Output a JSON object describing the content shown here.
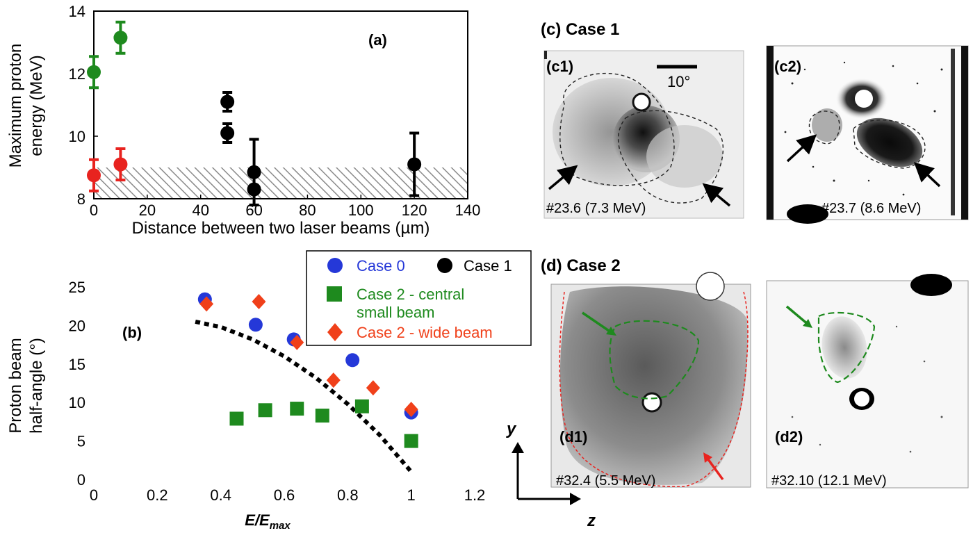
{
  "panel_a": {
    "label": "(a)",
    "chart_data": {
      "type": "scatter",
      "xlabel": "Distance between two laser beams (µm)",
      "ylabel_line1": "Maximum proton",
      "ylabel_line2": "energy (MeV)",
      "xlim": [
        0,
        140
      ],
      "ylim": [
        8,
        14
      ],
      "xticks": [
        0,
        20,
        40,
        60,
        80,
        100,
        120,
        140
      ],
      "yticks": [
        8,
        10,
        12,
        14
      ],
      "hatched_region": {
        "y_from": 8,
        "y_to": 9
      },
      "series": [
        {
          "color": "#1e8a1e",
          "points": [
            {
              "x": 0,
              "y": 12.05,
              "err": 0.5
            },
            {
              "x": 10,
              "y": 13.15,
              "err": 0.5
            }
          ]
        },
        {
          "color": "#e8231f",
          "points": [
            {
              "x": 0,
              "y": 8.75,
              "err": 0.5
            },
            {
              "x": 10,
              "y": 9.1,
              "err": 0.5
            }
          ]
        },
        {
          "color": "#000000",
          "points": [
            {
              "x": 50,
              "y": 11.1,
              "err": 0.3
            },
            {
              "x": 50,
              "y": 10.1,
              "err": 0.3
            },
            {
              "x": 60,
              "y": 8.85,
              "err": 1.05
            },
            {
              "x": 60,
              "y": 8.3,
              "err": 0.0
            },
            {
              "x": 120,
              "y": 9.1,
              "err": 1.0
            }
          ]
        }
      ]
    }
  },
  "panel_b": {
    "label": "(b)",
    "chart_data": {
      "type": "scatter",
      "xlabel": "E/E",
      "xlabel_sub": "max",
      "ylabel_line1": "Proton beam",
      "ylabel_line2": "half-angle (°)",
      "xlim": [
        0,
        1.2
      ],
      "ylim": [
        0,
        25
      ],
      "xticks": [
        "0",
        "0.2",
        "0.4",
        "0.6",
        "0.8",
        "1",
        "1.2"
      ],
      "xtick_values": [
        0,
        0.2,
        0.4,
        0.6,
        0.8,
        1.0,
        1.2
      ],
      "yticks": [
        0,
        5,
        10,
        15,
        20,
        25
      ],
      "series": [
        {
          "name": "Case 0",
          "color": "#2538d8",
          "marker": "circle",
          "points": [
            [
              0.35,
              23.4
            ],
            [
              0.51,
              20.1
            ],
            [
              0.63,
              18.2
            ],
            [
              0.815,
              15.5
            ],
            [
              1.0,
              8.7
            ]
          ]
        },
        {
          "name": "Case 1",
          "color": "#000000",
          "marker": "circle",
          "points": []
        },
        {
          "name": "Case 2 - central small beam",
          "name_line1": "Case 2 - central",
          "name_line2": "small beam",
          "color": "#1e8a1e",
          "marker": "square",
          "points": [
            [
              0.45,
              7.9
            ],
            [
              0.54,
              9.0
            ],
            [
              0.64,
              9.2
            ],
            [
              0.72,
              8.3
            ],
            [
              0.845,
              9.5
            ],
            [
              1.0,
              5.0
            ]
          ]
        },
        {
          "name": "Case 2 - wide beam",
          "color": "#f0401a",
          "marker": "diamond",
          "points": [
            [
              0.355,
              22.8
            ],
            [
              0.52,
              23.1
            ],
            [
              0.64,
              17.8
            ],
            [
              0.755,
              12.9
            ],
            [
              0.88,
              11.9
            ],
            [
              1.0,
              9.1
            ]
          ]
        }
      ],
      "curve": [
        [
          0.32,
          20.5
        ],
        [
          0.4,
          19.8
        ],
        [
          0.5,
          18.2
        ],
        [
          0.6,
          16.0
        ],
        [
          0.7,
          13.2
        ],
        [
          0.8,
          9.8
        ],
        [
          0.9,
          5.8
        ],
        [
          1.0,
          1.0
        ]
      ]
    }
  },
  "panel_c": {
    "title": "(c) Case 1",
    "c1": {
      "label": "(c1)",
      "scale": "10°",
      "caption": "#23.6 (7.3 MeV)"
    },
    "c2": {
      "label": "(c2)",
      "caption": "#23.7 (8.6 MeV)"
    }
  },
  "panel_d": {
    "title": "(d) Case 2",
    "d1": {
      "label": "(d1)",
      "caption": "#32.4 (5.5 MeV)"
    },
    "d2": {
      "label": "(d2)",
      "caption": "#32.10 (12.1 MeV)"
    },
    "axis_y": "y",
    "axis_z": "z"
  }
}
